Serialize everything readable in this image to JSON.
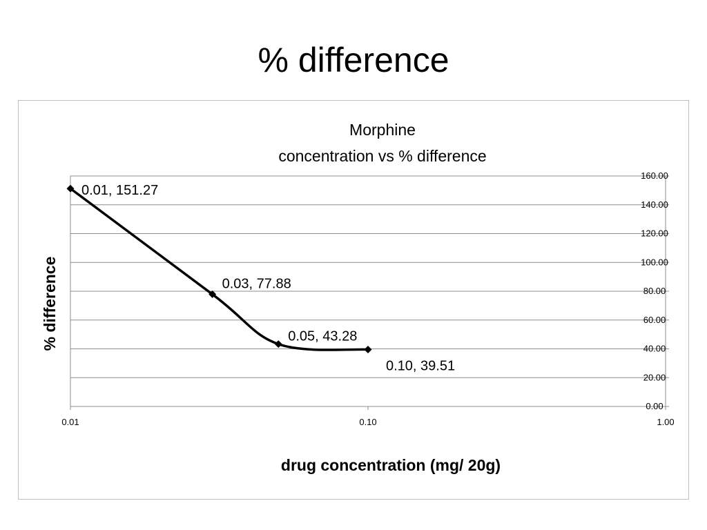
{
  "slide": {
    "title": "% difference"
  },
  "chart_data": {
    "type": "scatter",
    "title_lines": [
      "Morphine",
      "concentration vs % difference"
    ],
    "xlabel": "drug concentration (mg/ 20g)",
    "ylabel": "% difference",
    "x_scale": "log",
    "xlim": [
      0.01,
      1.0
    ],
    "ylim": [
      0,
      160
    ],
    "y_axis_side": "right",
    "x_ticks": [
      "0.01",
      "0.10",
      "1.00"
    ],
    "y_ticks": [
      "0.00",
      "20.00",
      "40.00",
      "60.00",
      "80.00",
      "100.00",
      "120.00",
      "140.00",
      "160.00"
    ],
    "grid": "horizontal",
    "line_smoothed": true,
    "marker": "diamond",
    "series": [
      {
        "points": [
          {
            "x": 0.01,
            "y": 151.27,
            "label": "0.01, 151.27"
          },
          {
            "x": 0.03,
            "y": 77.88,
            "label": "0.03, 77.88"
          },
          {
            "x": 0.05,
            "y": 43.28,
            "label": "0.05, 43.28"
          },
          {
            "x": 0.1,
            "y": 39.51,
            "label": "0.10, 39.51"
          }
        ]
      }
    ],
    "colors": {
      "line": "#000000",
      "grid": "#8c8c8c",
      "frame": "#bfbfbf"
    }
  }
}
